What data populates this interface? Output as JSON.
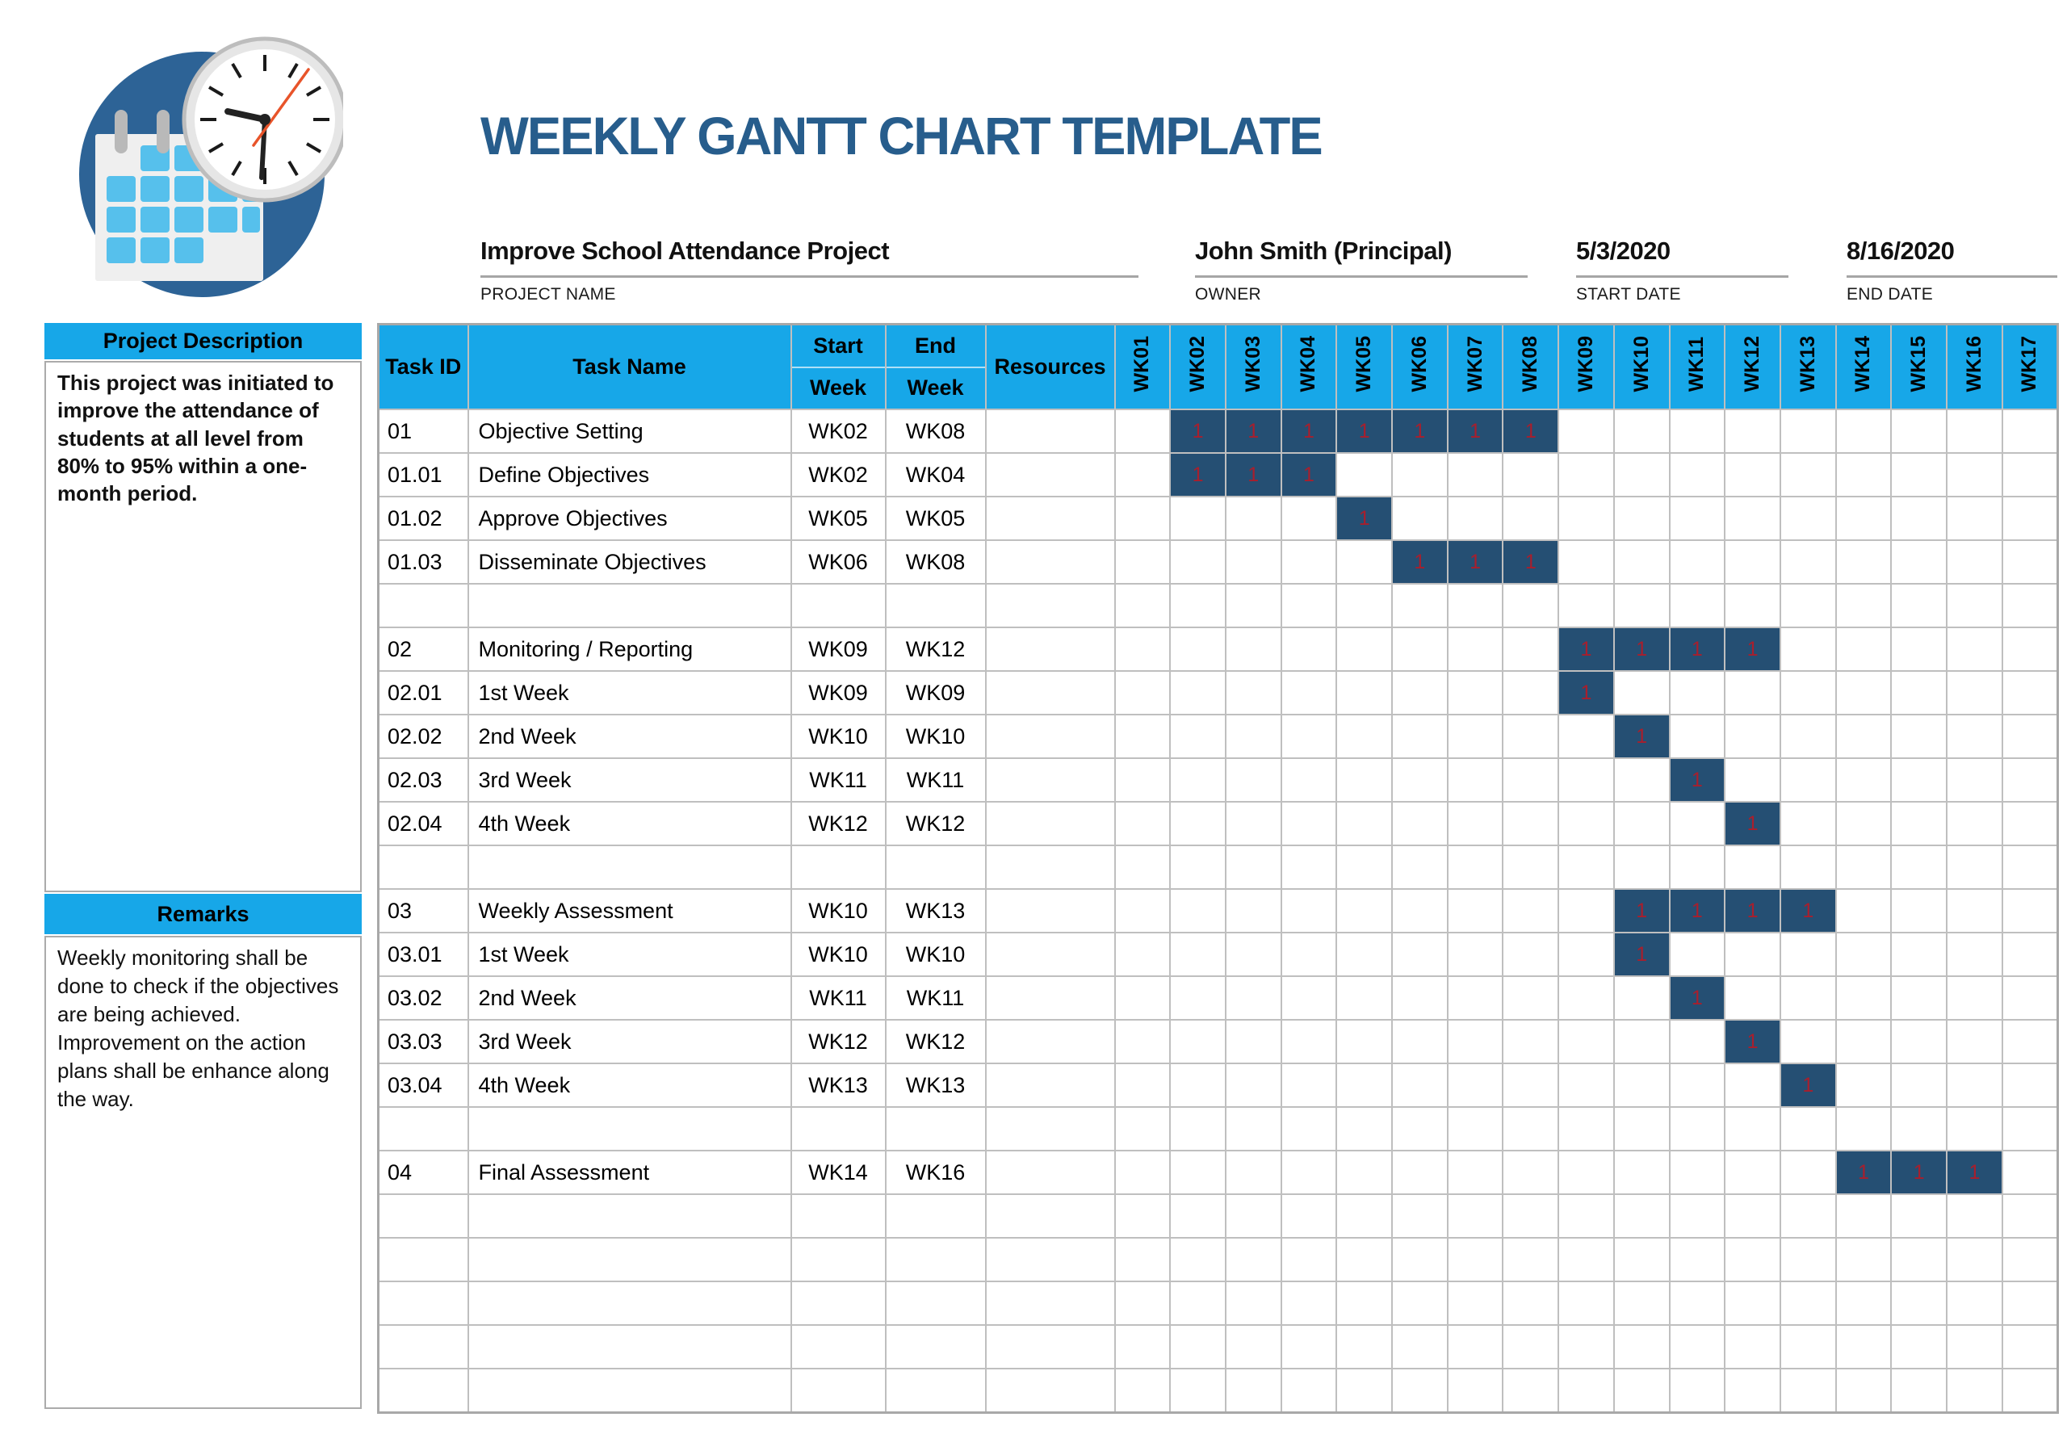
{
  "page_title": "WEEKLY GANTT CHART TEMPLATE",
  "header": {
    "logo_icon": "calendar-clock-logo"
  },
  "project_info": {
    "project_name": {
      "value": "Improve School Attendance Project",
      "label": "PROJECT NAME"
    },
    "owner": {
      "value": "John Smith (Principal)",
      "label": "OWNER"
    },
    "start_date": {
      "value": "5/3/2020",
      "label": "START DATE"
    },
    "end_date": {
      "value": "8/16/2020",
      "label": "END DATE"
    }
  },
  "sidebar": {
    "description_header": "Project Description",
    "description_body": "This project was initiated to improve the attendance of students at all level from 80% to 95% within a one-month period.",
    "remarks_header": "Remarks",
    "remarks_lines": [
      "Weekly monitoring shall be done to check if the objectives are being achieved.",
      "Improvement on the action plans shall be enhance along the way."
    ]
  },
  "table_header": {
    "task_id": "Task ID",
    "task_name": "Task Name",
    "start_line1": "Start",
    "start_line2": "Week",
    "end_line1": "End",
    "end_line2": "Week",
    "resources": "Resources"
  },
  "chart_data": {
    "type": "table",
    "subtype": "weekly-gantt",
    "title": "WEEKLY GANTT CHART TEMPLATE",
    "week_columns": [
      "WK01",
      "WK02",
      "WK03",
      "WK04",
      "WK05",
      "WK06",
      "WK07",
      "WK08",
      "WK09",
      "WK10",
      "WK11",
      "WK12",
      "WK13",
      "WK14",
      "WK15",
      "WK16",
      "WK17"
    ],
    "cell_fill_value": "1",
    "rows": [
      {
        "task_id": "01",
        "task_name": "Objective Setting",
        "start_week": "WK02",
        "end_week": "WK08",
        "resources": "",
        "bar_start": 2,
        "bar_end": 8
      },
      {
        "task_id": "01.01",
        "task_name": "Define Objectives",
        "start_week": "WK02",
        "end_week": "WK04",
        "resources": "",
        "bar_start": 2,
        "bar_end": 4
      },
      {
        "task_id": "01.02",
        "task_name": "Approve Objectives",
        "start_week": "WK05",
        "end_week": "WK05",
        "resources": "",
        "bar_start": 5,
        "bar_end": 5
      },
      {
        "task_id": "01.03",
        "task_name": "Disseminate Objectives",
        "start_week": "WK06",
        "end_week": "WK08",
        "resources": "",
        "bar_start": 6,
        "bar_end": 8
      },
      {
        "task_id": "",
        "task_name": "",
        "start_week": "",
        "end_week": "",
        "resources": "",
        "bar_start": null,
        "bar_end": null
      },
      {
        "task_id": "02",
        "task_name": "Monitoring / Reporting",
        "start_week": "WK09",
        "end_week": "WK12",
        "resources": "",
        "bar_start": 9,
        "bar_end": 12
      },
      {
        "task_id": "02.01",
        "task_name": "1st Week",
        "start_week": "WK09",
        "end_week": "WK09",
        "resources": "",
        "bar_start": 9,
        "bar_end": 9
      },
      {
        "task_id": "02.02",
        "task_name": "2nd Week",
        "start_week": "WK10",
        "end_week": "WK10",
        "resources": "",
        "bar_start": 10,
        "bar_end": 10
      },
      {
        "task_id": "02.03",
        "task_name": "3rd Week",
        "start_week": "WK11",
        "end_week": "WK11",
        "resources": "",
        "bar_start": 11,
        "bar_end": 11
      },
      {
        "task_id": "02.04",
        "task_name": "4th Week",
        "start_week": "WK12",
        "end_week": "WK12",
        "resources": "",
        "bar_start": 12,
        "bar_end": 12
      },
      {
        "task_id": "",
        "task_name": "",
        "start_week": "",
        "end_week": "",
        "resources": "",
        "bar_start": null,
        "bar_end": null
      },
      {
        "task_id": "03",
        "task_name": "Weekly Assessment",
        "start_week": "WK10",
        "end_week": "WK13",
        "resources": "",
        "bar_start": 10,
        "bar_end": 13
      },
      {
        "task_id": "03.01",
        "task_name": "1st Week",
        "start_week": "WK10",
        "end_week": "WK10",
        "resources": "",
        "bar_start": 10,
        "bar_end": 10
      },
      {
        "task_id": "03.02",
        "task_name": "2nd Week",
        "start_week": "WK11",
        "end_week": "WK11",
        "resources": "",
        "bar_start": 11,
        "bar_end": 11
      },
      {
        "task_id": "03.03",
        "task_name": "3rd Week",
        "start_week": "WK12",
        "end_week": "WK12",
        "resources": "",
        "bar_start": 12,
        "bar_end": 12
      },
      {
        "task_id": "03.04",
        "task_name": "4th Week",
        "start_week": "WK13",
        "end_week": "WK13",
        "resources": "",
        "bar_start": 13,
        "bar_end": 13
      },
      {
        "task_id": "",
        "task_name": "",
        "start_week": "",
        "end_week": "",
        "resources": "",
        "bar_start": null,
        "bar_end": null
      },
      {
        "task_id": "04",
        "task_name": "Final Assessment",
        "start_week": "WK14",
        "end_week": "WK16",
        "resources": "",
        "bar_start": 14,
        "bar_end": 16
      },
      {
        "task_id": "",
        "task_name": "",
        "start_week": "",
        "end_week": "",
        "resources": "",
        "bar_start": null,
        "bar_end": null
      },
      {
        "task_id": "",
        "task_name": "",
        "start_week": "",
        "end_week": "",
        "resources": "",
        "bar_start": null,
        "bar_end": null
      },
      {
        "task_id": "",
        "task_name": "",
        "start_week": "",
        "end_week": "",
        "resources": "",
        "bar_start": null,
        "bar_end": null
      },
      {
        "task_id": "",
        "task_name": "",
        "start_week": "",
        "end_week": "",
        "resources": "",
        "bar_start": null,
        "bar_end": null
      },
      {
        "task_id": "",
        "task_name": "",
        "start_week": "",
        "end_week": "",
        "resources": "",
        "bar_start": null,
        "bar_end": null
      }
    ]
  },
  "colors": {
    "accent_cyan": "#17A7E8",
    "bar_fill": "#254F73",
    "bar_value_red": "#A81F2D",
    "title_blue": "#275D8C",
    "grid_gray": "#BFBFBF",
    "logo_circle_blue": "#2D6396",
    "logo_square_blue": "#56C0EC"
  }
}
